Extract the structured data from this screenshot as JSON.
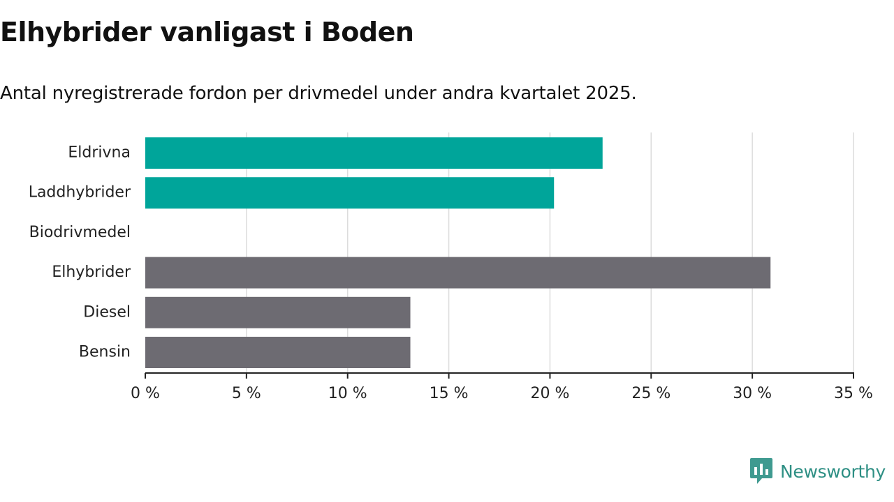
{
  "title": "Elhybrider vanligast i Boden",
  "subtitle": "Antal nyregistrerade fordon per drivmedel under andra kvartalet 2025.",
  "brand": {
    "name": "Newsworthy",
    "icon": "newsworthy-logo-icon",
    "color": "#2e8f84"
  },
  "colors": {
    "highlight": "#00a59a",
    "default": "#6d6b72",
    "grid": "#dcdcdc",
    "axis": "#222222"
  },
  "chart_data": {
    "type": "bar",
    "orientation": "horizontal",
    "categories": [
      "Eldrivna",
      "Laddhybrider",
      "Biodrivmedel",
      "Elhybrider",
      "Diesel",
      "Bensin"
    ],
    "values": [
      22.6,
      20.2,
      0,
      30.9,
      13.1,
      13.1
    ],
    "highlighted": [
      true,
      true,
      false,
      false,
      false,
      false
    ],
    "xlim": [
      0,
      35
    ],
    "xticks": [
      0,
      5,
      10,
      15,
      20,
      25,
      30,
      35
    ],
    "tick_suffix": " %",
    "grid": "vertical",
    "legend": "none",
    "xlabel": "",
    "ylabel": ""
  }
}
